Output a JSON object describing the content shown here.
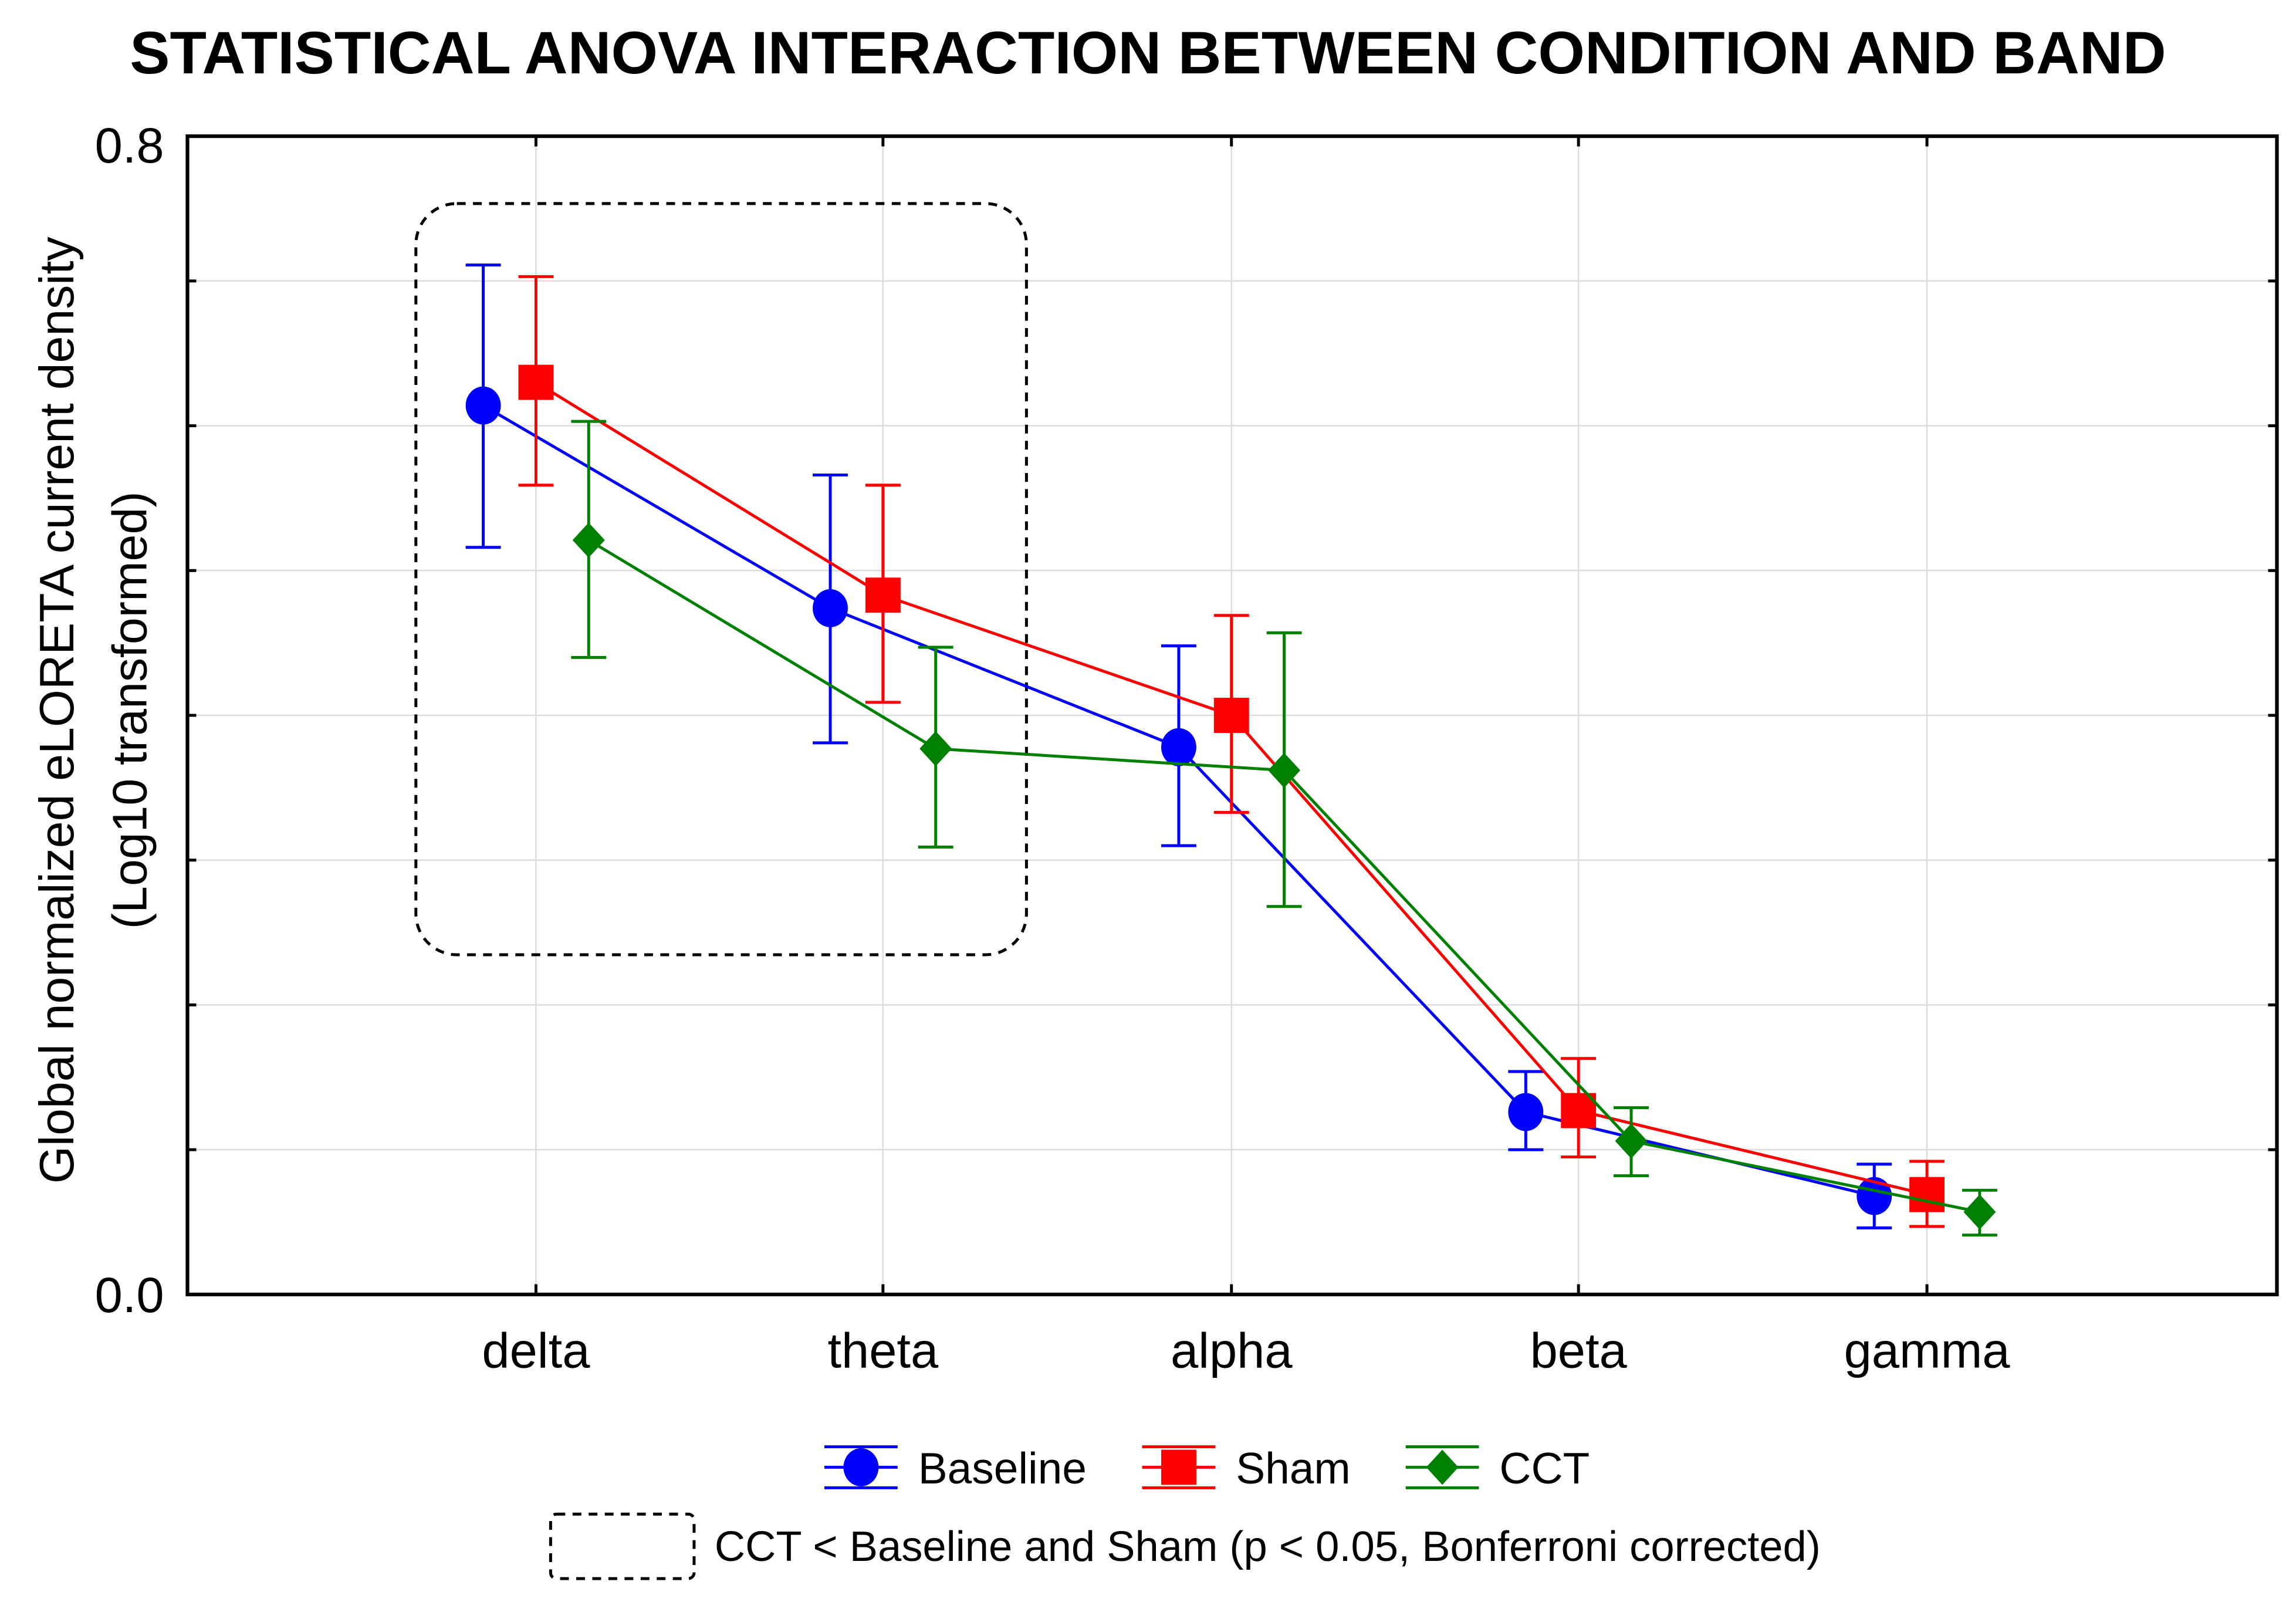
{
  "chart_data": {
    "type": "line",
    "title": "STATISTICAL ANOVA INTERACTION BETWEEN CONDITION AND BAND",
    "xlabel": "",
    "ylabel": "Global normalized eLORETA current density (Log10 transformed)",
    "ylabel_lines": [
      "Global normalized eLORETA current density",
      "(Log10 transformed)"
    ],
    "categories": [
      "delta",
      "theta",
      "alpha",
      "beta",
      "gamma"
    ],
    "ylim": [
      0.0,
      0.8
    ],
    "yticks": [
      0.0,
      0.1,
      0.2,
      0.3,
      0.4,
      0.5,
      0.6,
      0.7,
      0.8
    ],
    "ytick_labels": [
      "0.0",
      "0.8"
    ],
    "grid": true,
    "legend_position": "bottom",
    "series": [
      {
        "name": "Baseline",
        "color": "#0000ff",
        "marker": "circle",
        "values": [
          0.614,
          0.474,
          0.378,
          0.126,
          0.068
        ],
        "upper": [
          0.711,
          0.566,
          0.448,
          0.154,
          0.09
        ],
        "lower": [
          0.516,
          0.381,
          0.31,
          0.1,
          0.046
        ]
      },
      {
        "name": "Sham",
        "color": "#ff0000",
        "marker": "square",
        "values": [
          0.63,
          0.483,
          0.4,
          0.127,
          0.069
        ],
        "upper": [
          0.703,
          0.559,
          0.469,
          0.163,
          0.092
        ],
        "lower": [
          0.559,
          0.409,
          0.333,
          0.095,
          0.047
        ]
      },
      {
        "name": "CCT",
        "color": "#008000",
        "marker": "diamond",
        "values": [
          0.521,
          0.377,
          0.362,
          0.106,
          0.057
        ],
        "upper": [
          0.603,
          0.447,
          0.457,
          0.129,
          0.072
        ],
        "lower": [
          0.44,
          0.309,
          0.268,
          0.082,
          0.041
        ]
      }
    ],
    "annotation": {
      "label": "CCT < Baseline and Sham (p < 0.05, Bonferroni corrected)",
      "categories": [
        "delta",
        "theta"
      ]
    }
  }
}
